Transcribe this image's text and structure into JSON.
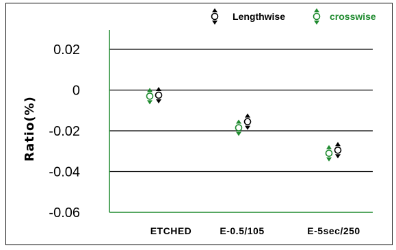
{
  "chart_data": {
    "type": "scatter",
    "title": "",
    "xlabel": "",
    "ylabel": "Ratio(%)",
    "ylim": [
      -0.06,
      0.02
    ],
    "yticks": [
      "0.02",
      "0",
      "-0.02",
      "-0.04",
      "-0.06"
    ],
    "ytick_values": [
      0.02,
      0,
      -0.02,
      -0.04,
      -0.06
    ],
    "categories": [
      "ETCHED",
      "E-0.5/105",
      "E-5sec/250"
    ],
    "series": [
      {
        "name": "Lengthwise",
        "color": "#000000",
        "values": [
          -0.0025,
          -0.0155,
          -0.0295
        ]
      },
      {
        "name": "crosswise",
        "color": "#1e8a2e",
        "values": [
          -0.003,
          -0.0185,
          -0.031
        ]
      }
    ],
    "grid": true,
    "legend_position": "top-right"
  }
}
